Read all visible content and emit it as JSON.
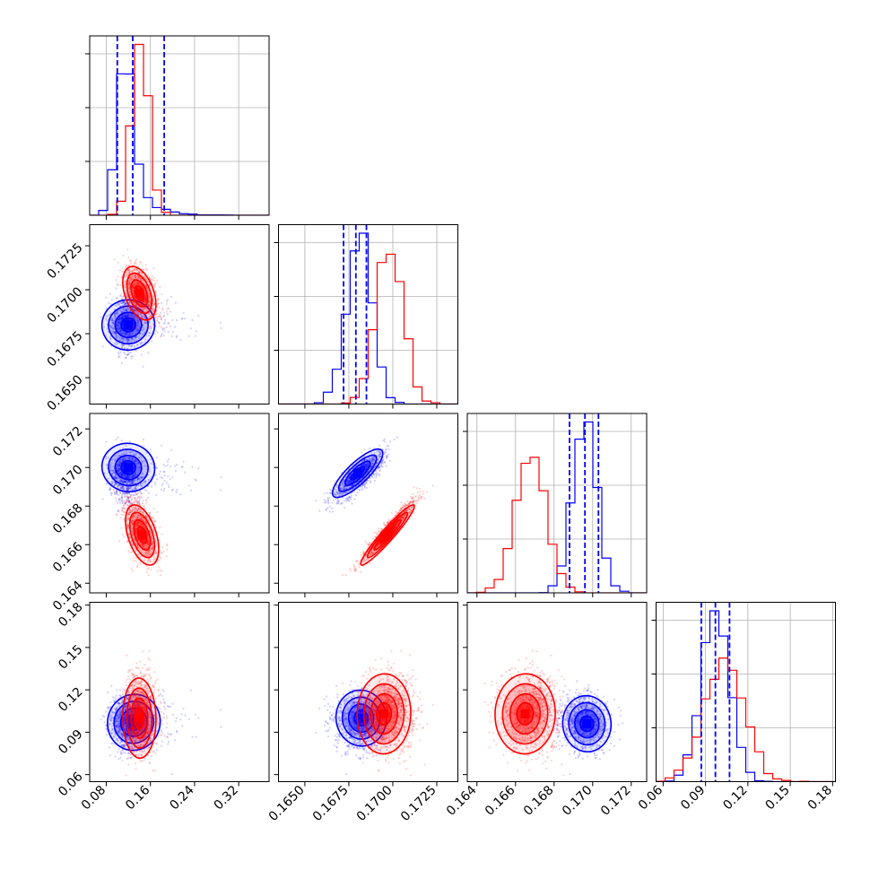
{
  "chart_data": {
    "type": "corner",
    "title": "",
    "n_params": 4,
    "parameters": [
      {
        "index": 0,
        "range": [
          0.05,
          0.375
        ],
        "ticks": [
          0.08,
          0.16,
          0.24,
          0.32
        ],
        "tick_labels": [
          "0.08",
          "0.16",
          "0.24",
          "0.32"
        ]
      },
      {
        "index": 1,
        "range": [
          0.1635,
          0.1737
        ],
        "ticks": [
          0.165,
          0.1675,
          0.17,
          0.1725
        ],
        "tick_labels": [
          "0.1650",
          "0.1675",
          "0.1700",
          "0.1725"
        ]
      },
      {
        "index": 2,
        "range": [
          0.1635,
          0.1728
        ],
        "ticks": [
          0.164,
          0.166,
          0.168,
          0.17,
          0.172
        ],
        "tick_labels": [
          "0.164",
          "0.166",
          "0.168",
          "0.170",
          "0.172"
        ]
      },
      {
        "index": 3,
        "range": [
          0.055,
          0.182
        ],
        "ticks": [
          0.06,
          0.09,
          0.12,
          0.15,
          0.18
        ],
        "tick_labels": [
          "0.06",
          "0.09",
          "0.12",
          "0.15",
          "0.18"
        ]
      }
    ],
    "series": [
      {
        "color": "#0000ff",
        "mean": [
          0.128,
          0.1681,
          0.1696,
          0.097
        ],
        "std": [
          0.045,
          0.00072,
          0.00062,
          0.0095
        ],
        "skew": [
          4.0,
          0,
          0,
          0
        ],
        "quantiles": [
          [
            0.1,
            0.128,
            0.185
          ],
          [
            0.1672,
            0.1679,
            0.1685
          ],
          [
            0.1688,
            0.1696,
            0.1703
          ],
          [
            0.087,
            0.097,
            0.107
          ]
        ],
        "correlations": [
          {
            "pair": [
              1,
              0
            ],
            "r": 0.0
          },
          {
            "pair": [
              2,
              0
            ],
            "r": -0.25
          },
          {
            "pair": [
              2,
              1
            ],
            "r": 0.8
          },
          {
            "pair": [
              3,
              0
            ],
            "r": 0.0
          },
          {
            "pair": [
              3,
              1
            ],
            "r": 0.0
          },
          {
            "pair": [
              3,
              2
            ],
            "r": 0.0
          }
        ],
        "modes": [
          {
            "pair": [
              1,
              0
            ],
            "x": 0.12,
            "y": 0.168
          },
          {
            "pair": [
              2,
              0
            ],
            "x": 0.12,
            "y": 0.17
          },
          {
            "pair": [
              2,
              1
            ],
            "x": 0.168,
            "y": 0.1697
          },
          {
            "pair": [
              3,
              0
            ],
            "x": 0.13,
            "y": 0.097
          },
          {
            "pair": [
              3,
              1
            ],
            "x": 0.1682,
            "y": 0.1
          },
          {
            "pair": [
              3,
              2
            ],
            "x": 0.1697,
            "y": 0.096
          }
        ]
      },
      {
        "color": "#ff0000",
        "mean": [
          0.142,
          0.1698,
          0.1668,
          0.103
        ],
        "std": [
          0.015,
          0.00075,
          0.00075,
          0.014
        ],
        "skew": [
          0,
          0,
          0,
          0
        ],
        "quantiles": [],
        "correlations": [
          {
            "pair": [
              1,
              0
            ],
            "r": -0.4
          },
          {
            "pair": [
              2,
              0
            ],
            "r": -0.3
          },
          {
            "pair": [
              2,
              1
            ],
            "r": 0.95
          },
          {
            "pair": [
              3,
              0
            ],
            "r": 0.0
          },
          {
            "pair": [
              3,
              1
            ],
            "r": 0.0
          },
          {
            "pair": [
              3,
              2
            ],
            "r": 0.0
          }
        ],
        "modes": [
          {
            "pair": [
              1,
              0
            ],
            "x": 0.14,
            "y": 0.1698
          },
          {
            "pair": [
              2,
              0
            ],
            "x": 0.145,
            "y": 0.1665
          },
          {
            "pair": [
              2,
              1
            ],
            "x": 0.1697,
            "y": 0.1665
          },
          {
            "pair": [
              3,
              0
            ],
            "x": 0.14,
            "y": 0.1
          },
          {
            "pair": [
              3,
              1
            ],
            "x": 0.1695,
            "y": 0.103
          },
          {
            "pair": [
              3,
              2
            ],
            "x": 0.1665,
            "y": 0.103
          }
        ]
      }
    ],
    "grid": true,
    "legend": "none"
  }
}
